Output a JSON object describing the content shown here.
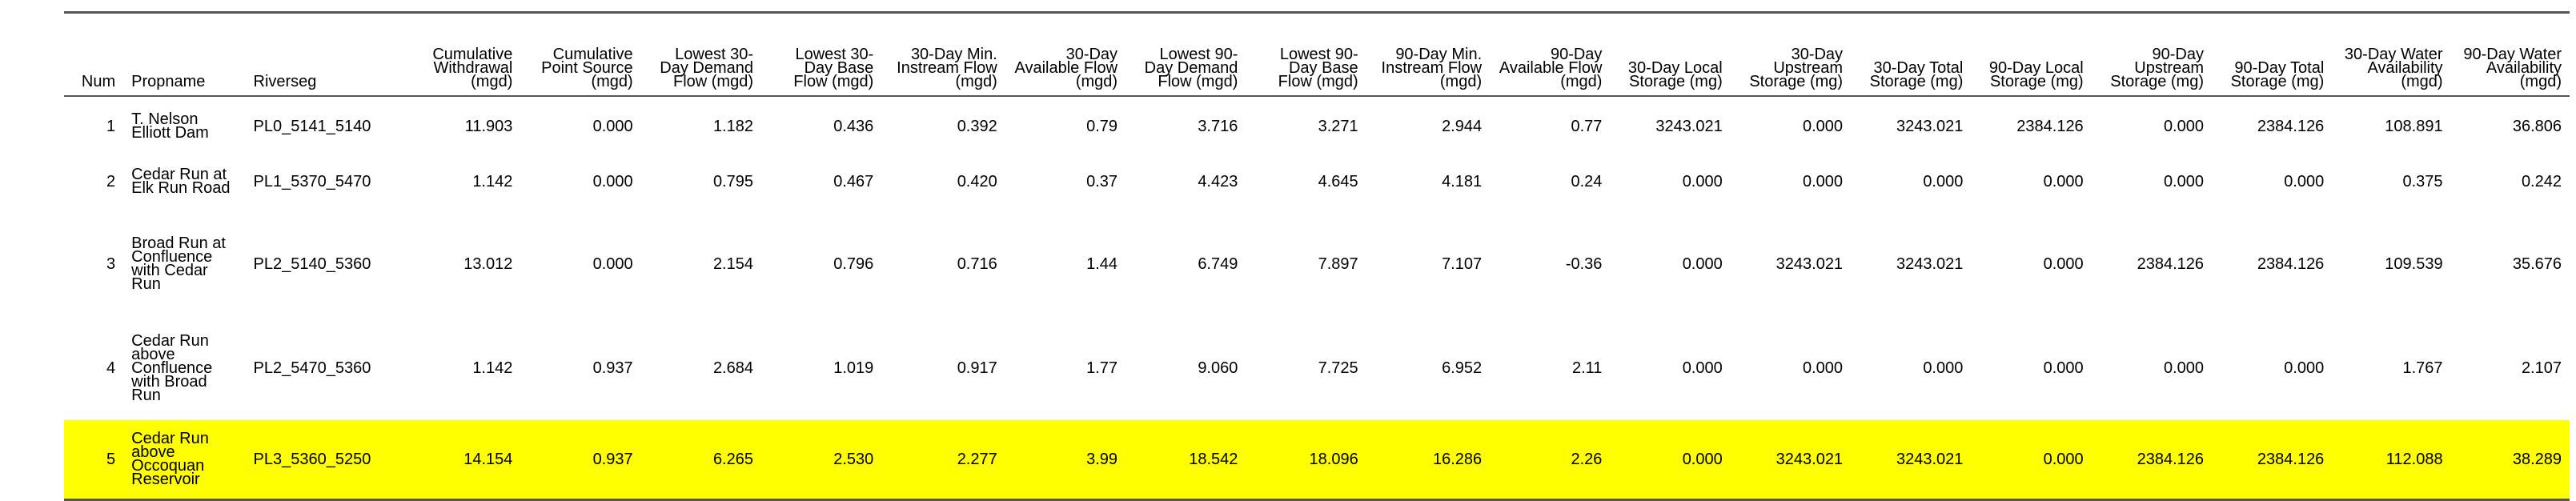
{
  "columns": [
    "Num",
    "Propname",
    "Riverseg",
    "Cumulative Withdrawal (mgd)",
    "Cumulative Point Source (mgd)",
    "Lowest 30-Day Demand Flow (mgd)",
    "Lowest 30-Day Base Flow (mgd)",
    "30-Day Min. Instream Flow (mgd)",
    "30-Day Available Flow (mgd)",
    "Lowest 90-Day Demand Flow (mgd)",
    "Lowest 90-Day Base Flow (mgd)",
    "90-Day Min. Instream Flow (mgd)",
    "90-Day Available Flow (mgd)",
    "30-Day Local Storage (mg)",
    "30-Day Upstream Storage (mg)",
    "30-Day Total Storage (mg)",
    "90-Day Local Storage (mg)",
    "90-Day Upstream Storage (mg)",
    "90-Day Total Storage (mg)",
    "30-Day Water Availability (mgd)",
    "90-Day Water Availability (mgd)"
  ],
  "rows": [
    [
      "1",
      "T. Nelson Elliott Dam",
      "PL0_5141_5140",
      "11.903",
      "0.000",
      "1.182",
      "0.436",
      "0.392",
      "0.79",
      "3.716",
      "3.271",
      "2.944",
      "0.77",
      "3243.021",
      "0.000",
      "3243.021",
      "2384.126",
      "0.000",
      "2384.126",
      "108.891",
      "36.806"
    ],
    [
      "2",
      "Cedar Run at Elk Run Road",
      "PL1_5370_5470",
      "1.142",
      "0.000",
      "0.795",
      "0.467",
      "0.420",
      "0.37",
      "4.423",
      "4.645",
      "4.181",
      "0.24",
      "0.000",
      "0.000",
      "0.000",
      "0.000",
      "0.000",
      "0.000",
      "0.375",
      "0.242"
    ],
    [
      "3",
      "Broad Run at Confluence with Cedar Run",
      "PL2_5140_5360",
      "13.012",
      "0.000",
      "2.154",
      "0.796",
      "0.716",
      "1.44",
      "6.749",
      "7.897",
      "7.107",
      "-0.36",
      "0.000",
      "3243.021",
      "3243.021",
      "0.000",
      "2384.126",
      "2384.126",
      "109.539",
      "35.676"
    ],
    [
      "4",
      "Cedar Run above Confluence with Broad Run",
      "PL2_5470_5360",
      "1.142",
      "0.937",
      "2.684",
      "1.019",
      "0.917",
      "1.77",
      "9.060",
      "7.725",
      "6.952",
      "2.11",
      "0.000",
      "0.000",
      "0.000",
      "0.000",
      "0.000",
      "0.000",
      "1.767",
      "2.107"
    ],
    [
      "5",
      "Cedar Run above Occoquan Reservoir",
      "PL3_5360_5250",
      "14.154",
      "0.937",
      "6.265",
      "2.530",
      "2.277",
      "3.99",
      "18.542",
      "18.096",
      "16.286",
      "2.26",
      "0.000",
      "3243.021",
      "3243.021",
      "0.000",
      "2384.126",
      "2384.126",
      "112.088",
      "38.289"
    ]
  ],
  "highlight_row_index": 4,
  "colors": {
    "highlight": "#ffff00",
    "rule": "#555555",
    "text": "#000000"
  }
}
